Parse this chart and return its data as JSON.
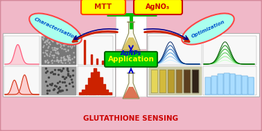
{
  "bg_color": "#f0b8c8",
  "border_color": "#d4889a",
  "title_text": "GLUTATHIONE SENSING",
  "title_color": "#cc0000",
  "mtt_label": "MTT",
  "mtt_bg": "#ffff00",
  "mtt_border": "#ff4400",
  "agno3_label": "AgNO₃",
  "agno3_bg": "#ffff00",
  "agno3_border": "#cc0000",
  "agnps_label": "AgNPs",
  "agnps_color": "#0000cc",
  "application_label": "Application",
  "application_bg": "#00cc00",
  "application_border": "#006600",
  "application_text_color": "#ffff00",
  "char_label": "Characterisation",
  "char_bg": "#aaffee",
  "char_border": "#ff4444",
  "opt_label": "Optimization",
  "opt_bg": "#aaffee",
  "opt_border": "#ff4444",
  "arrow_red": "#cc2200",
  "arrow_blue": "#000088",
  "connector_color": "#00bb00",
  "panel_bg": "#ffffff"
}
